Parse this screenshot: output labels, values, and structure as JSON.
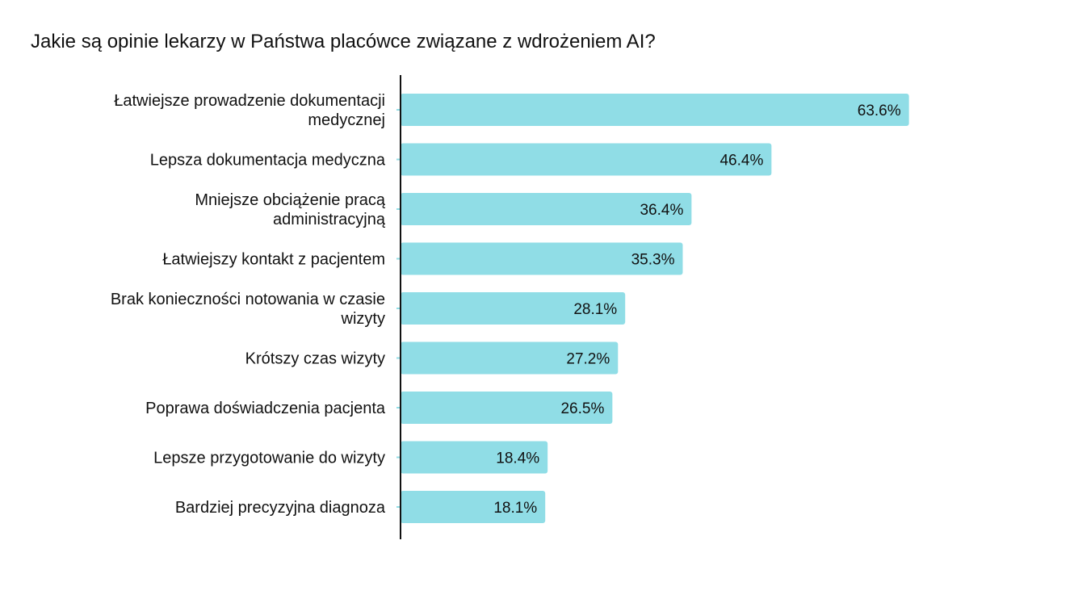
{
  "chart_data": {
    "type": "bar",
    "orientation": "horizontal",
    "title": "Jakie są opinie lekarzy w Państwa placówce związane z wdrożeniem AI?",
    "categories": [
      [
        "Łatwiejsze prowadzenie dokumentacji",
        "medycznej"
      ],
      [
        "Lepsza dokumentacja medyczna"
      ],
      [
        "Mniejsze obciążenie pracą",
        "administracyjną"
      ],
      [
        "Łatwiejszy kontakt z pacjentem"
      ],
      [
        "Brak konieczności notowania w czasie",
        "wizyty"
      ],
      [
        "Krótszy czas wizyty"
      ],
      [
        "Poprawa doświadczenia pacjenta"
      ],
      [
        "Lepsze przygotowanie do wizyty"
      ],
      [
        "Bardziej precyzyjna diagnoza"
      ]
    ],
    "values": [
      63.6,
      46.4,
      36.4,
      35.3,
      28.1,
      27.2,
      26.5,
      18.4,
      18.1
    ],
    "value_labels": [
      "63.6%",
      "46.4%",
      "36.4%",
      "35.3%",
      "28.1%",
      "27.2%",
      "26.5%",
      "18.4%",
      "18.1%"
    ],
    "xlabel": "",
    "ylabel": "",
    "xlim": [
      0,
      100
    ],
    "grid": false,
    "bar_color": "#90dde6"
  }
}
